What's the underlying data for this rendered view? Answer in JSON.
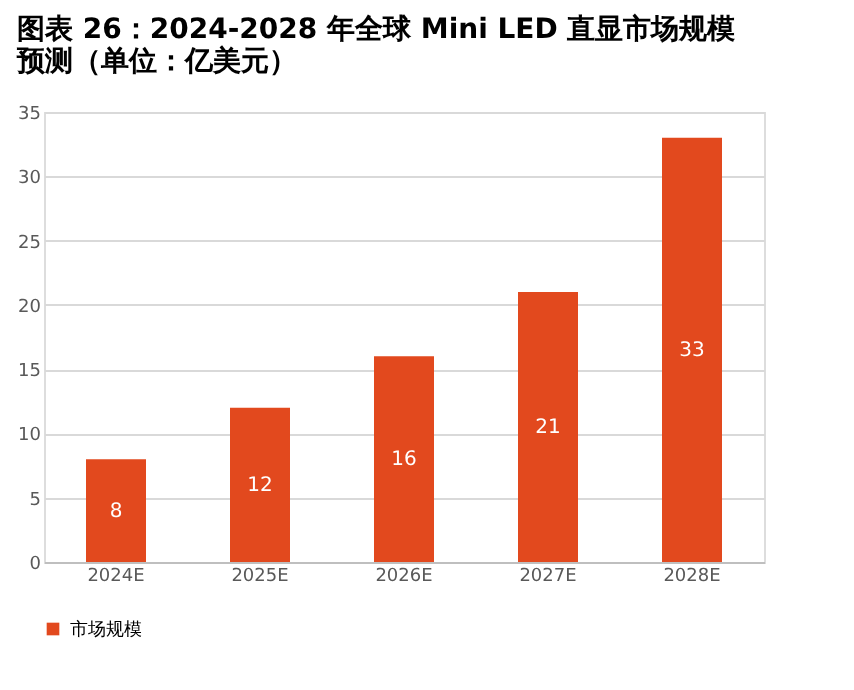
{
  "chart_data": {
    "type": "bar",
    "title": "图表 26：2024-2028 年全球 Mini LED 直显市场规模预测（单位：亿美元）",
    "categories": [
      "2024E",
      "2025E",
      "2026E",
      "2027E",
      "2028E"
    ],
    "series": [
      {
        "name": "市场规模",
        "color": "#e2491e",
        "values": [
          8,
          12,
          16,
          21,
          33
        ]
      }
    ],
    "ylim": [
      0,
      35
    ],
    "yticks": [
      0,
      5,
      10,
      15,
      20,
      25,
      30,
      35
    ],
    "grid": "y",
    "legend": "bottom",
    "data_labels": true
  }
}
